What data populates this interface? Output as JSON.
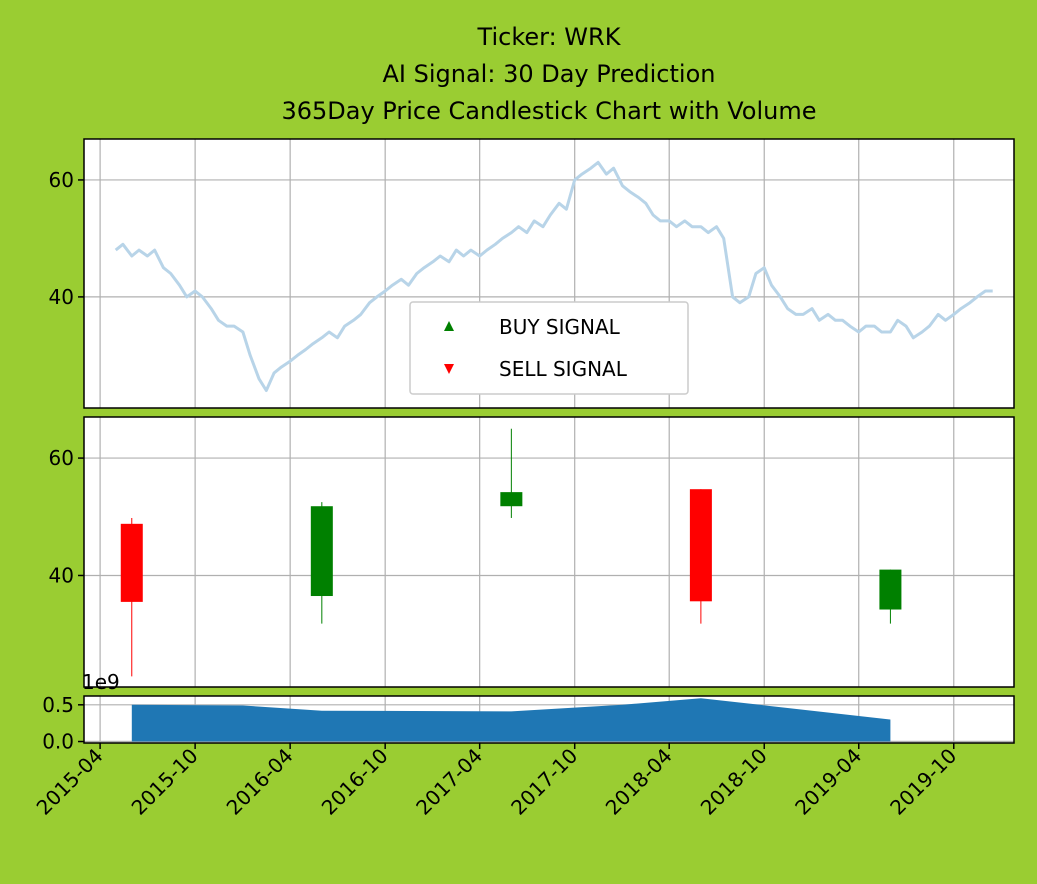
{
  "chart_data": [
    {
      "type": "line",
      "title_lines": [
        "Ticker: WRK",
        "AI Signal: 30 Day Prediction",
        "365Day Price Candlestick Chart with Volume"
      ],
      "xlim": [
        "2015-03-01",
        "2020-01-25"
      ],
      "ylim": [
        21,
        67
      ],
      "yticks": [
        40,
        60
      ],
      "series_color": "#b8d4e8",
      "legend": {
        "placement": "lower center",
        "entries": [
          {
            "label": "BUY SIGNAL",
            "color": "#008000",
            "marker": "triangle-up"
          },
          {
            "label": "SELL SIGNAL",
            "color": "#ff0000",
            "marker": "triangle-down"
          }
        ]
      },
      "series": [
        {
          "x": [
            "2015-05-01",
            "2015-05-15",
            "2015-06-01",
            "2015-06-15",
            "2015-07-01",
            "2015-07-15",
            "2015-08-01",
            "2015-08-15",
            "2015-09-01",
            "2015-09-15",
            "2015-10-01",
            "2015-10-15",
            "2015-11-01",
            "2015-11-15",
            "2015-12-01",
            "2015-12-15",
            "2016-01-01",
            "2016-01-15",
            "2016-02-01",
            "2016-02-15",
            "2016-03-01",
            "2016-03-15",
            "2016-04-01",
            "2016-04-15",
            "2016-05-01",
            "2016-05-15",
            "2016-06-01",
            "2016-06-15",
            "2016-07-01",
            "2016-07-15",
            "2016-08-01",
            "2016-08-15",
            "2016-09-01",
            "2016-09-15",
            "2016-10-01",
            "2016-10-15",
            "2016-11-01",
            "2016-11-15",
            "2016-12-01",
            "2016-12-15",
            "2017-01-01",
            "2017-01-15",
            "2017-02-01",
            "2017-02-15",
            "2017-03-01",
            "2017-03-15",
            "2017-04-01",
            "2017-04-15",
            "2017-05-01",
            "2017-05-15",
            "2017-06-01",
            "2017-06-15",
            "2017-07-01",
            "2017-07-15",
            "2017-08-01",
            "2017-08-15",
            "2017-09-01",
            "2017-09-15",
            "2017-10-01",
            "2017-10-15",
            "2017-11-01",
            "2017-11-15",
            "2017-12-01",
            "2017-12-15",
            "2018-01-01",
            "2018-01-15",
            "2018-02-01",
            "2018-02-15",
            "2018-03-01",
            "2018-03-15",
            "2018-04-01",
            "2018-04-15",
            "2018-05-01",
            "2018-05-15",
            "2018-06-01",
            "2018-06-15",
            "2018-07-01",
            "2018-07-15",
            "2018-08-01",
            "2018-08-15",
            "2018-09-01",
            "2018-09-15",
            "2018-10-01",
            "2018-10-15",
            "2018-11-01",
            "2018-11-15",
            "2018-12-01",
            "2018-12-15",
            "2019-01-01",
            "2019-01-15",
            "2019-02-01",
            "2019-02-15",
            "2019-03-01",
            "2019-03-15",
            "2019-04-01",
            "2019-04-15",
            "2019-05-01",
            "2019-05-15",
            "2019-06-01",
            "2019-06-15",
            "2019-07-01",
            "2019-07-15",
            "2019-08-01",
            "2019-08-15",
            "2019-09-01",
            "2019-09-15",
            "2019-10-01",
            "2019-10-15",
            "2019-11-01",
            "2019-11-15",
            "2019-12-01",
            "2019-12-15"
          ],
          "y": [
            48,
            49,
            47,
            48,
            47,
            48,
            45,
            44,
            42,
            40,
            41,
            40,
            38,
            36,
            35,
            35,
            34,
            30,
            26,
            24,
            27,
            28,
            29,
            30,
            31,
            32,
            33,
            34,
            33,
            35,
            36,
            37,
            39,
            40,
            41,
            42,
            43,
            42,
            44,
            45,
            46,
            47,
            46,
            48,
            47,
            48,
            47,
            48,
            49,
            50,
            51,
            52,
            51,
            53,
            52,
            54,
            56,
            55,
            60,
            61,
            62,
            63,
            61,
            62,
            59,
            58,
            57,
            56,
            54,
            53,
            53,
            52,
            53,
            52,
            52,
            51,
            52,
            50,
            40,
            39,
            40,
            44,
            45,
            42,
            40,
            38,
            37,
            37,
            38,
            36,
            37,
            36,
            36,
            35,
            34,
            35,
            35,
            34,
            34,
            36,
            35,
            33,
            34,
            35,
            37,
            36,
            37,
            38,
            39,
            40,
            41,
            41
          ]
        }
      ]
    },
    {
      "type": "bar",
      "subtype": "candlestick",
      "xlim": [
        "2015-03-01",
        "2020-01-25"
      ],
      "ylim": [
        21,
        67
      ],
      "yticks": [
        40,
        60
      ],
      "candles": [
        {
          "date": "2015-06-01",
          "open": 48.8,
          "close": 35.5,
          "high": 49.8,
          "low": 22.8,
          "color": "#ff0000"
        },
        {
          "date": "2016-06-01",
          "open": 36.5,
          "close": 51.8,
          "high": 52.5,
          "low": 31.8,
          "color": "#008000"
        },
        {
          "date": "2017-06-01",
          "open": 51.8,
          "close": 54.2,
          "high": 65.0,
          "low": 49.8,
          "color": "#008000"
        },
        {
          "date": "2018-06-01",
          "open": 54.7,
          "close": 35.6,
          "high": 54.7,
          "low": 31.8,
          "color": "#ff0000"
        },
        {
          "date": "2019-06-01",
          "open": 34.2,
          "close": 41.0,
          "high": 41.0,
          "low": 31.8,
          "color": "#008000"
        }
      ]
    },
    {
      "type": "area",
      "xlim": [
        "2015-03-01",
        "2020-01-25"
      ],
      "ylim": [
        -0.02,
        0.62
      ],
      "yticks": [
        "0.0",
        "0.5"
      ],
      "scale_label": "1e9",
      "xticks": [
        "2015-04",
        "2015-10",
        "2016-04",
        "2016-10",
        "2017-04",
        "2017-10",
        "2018-04",
        "2018-10",
        "2019-04",
        "2019-10"
      ],
      "fill_color": "#1f77b4",
      "x": [
        "2015-06-01",
        "2015-06-01",
        "2016-01-01",
        "2016-06-01",
        "2017-06-01",
        "2018-01-01",
        "2018-06-01",
        "2019-06-01",
        "2019-06-01"
      ],
      "y": [
        0.0,
        0.5,
        0.49,
        0.42,
        0.41,
        0.5,
        0.59,
        0.3,
        0.0
      ]
    }
  ]
}
